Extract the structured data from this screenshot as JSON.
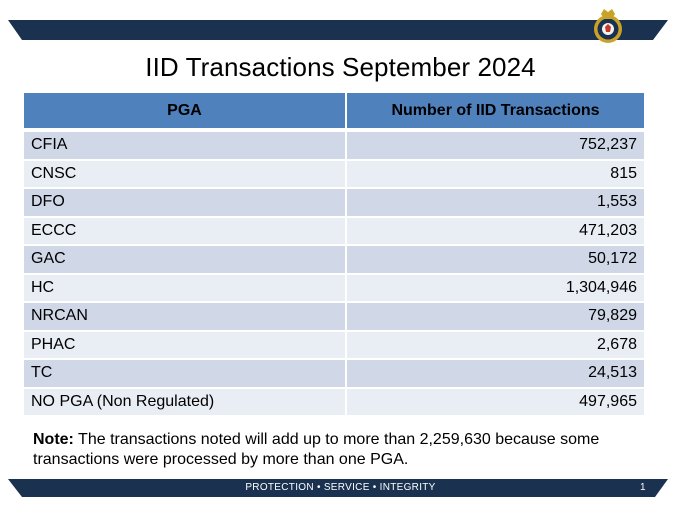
{
  "slide": {
    "title": "IID Transactions September 2024",
    "footer": "PROTECTION • SERVICE • INTEGRITY",
    "page_number": "1"
  },
  "colors": {
    "band": "#1a3150",
    "header": "#4f81bd",
    "row_dark": "#d0d8e8",
    "row_light": "#e9edf4"
  },
  "table": {
    "headers": [
      "PGA",
      "Number of IID Transactions"
    ],
    "rows": [
      {
        "pga": "CFIA",
        "count": "752,237"
      },
      {
        "pga": "CNSC",
        "count": "815"
      },
      {
        "pga": "DFO",
        "count": "1,553"
      },
      {
        "pga": "ECCC",
        "count": "471,203"
      },
      {
        "pga": "GAC",
        "count": "50,172"
      },
      {
        "pga": "HC",
        "count": "1,304,946"
      },
      {
        "pga": "NRCAN",
        "count": "79,829"
      },
      {
        "pga": "PHAC",
        "count": "2,678"
      },
      {
        "pga": "TC",
        "count": "24,513"
      },
      {
        "pga": "NO PGA (Non Regulated)",
        "count": "497,965"
      }
    ]
  },
  "note": {
    "label": "Note:",
    "text": " The transactions noted will add up to more than 2,259,630 because some transactions were processed by more than one PGA."
  }
}
